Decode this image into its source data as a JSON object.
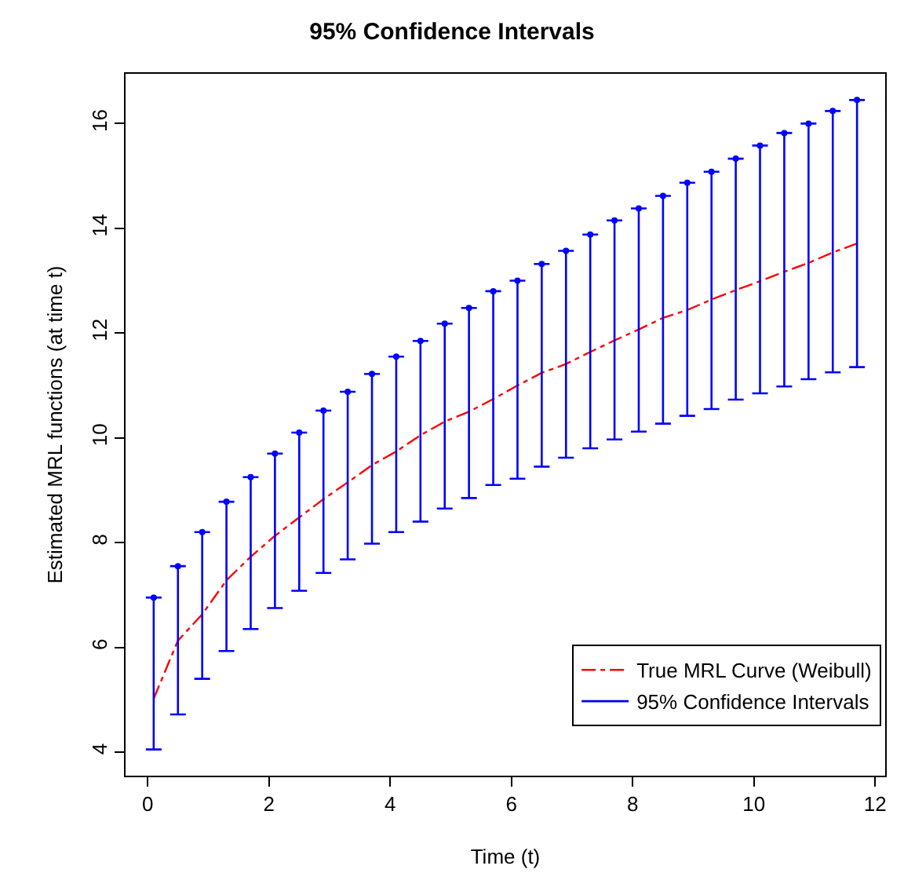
{
  "chart_data": {
    "type": "line",
    "title": "95% Confidence Intervals",
    "xlabel": "Time (t)",
    "ylabel": "Estimated MRL functions (at time t)",
    "xlim": [
      -0.364,
      12.164
    ],
    "xticks": [
      0,
      2,
      4,
      6,
      8,
      10,
      12
    ],
    "ylim": [
      3.55,
      16.95
    ],
    "yticks": [
      4,
      6,
      8,
      10,
      12,
      14,
      16
    ],
    "grid": false,
    "legend": "bottom right",
    "series": [
      {
        "name": "True MRL Curve (Weibull)",
        "color": "#ff0000",
        "line_style": "dashdot",
        "marker": "none",
        "x": [
          0.1,
          0.5,
          0.9,
          1.3,
          1.7,
          2.1,
          2.5,
          2.9,
          3.3,
          3.7,
          4.1,
          4.5,
          4.9,
          5.3,
          5.7,
          6.1,
          6.5,
          6.9,
          7.3,
          7.7,
          8.1,
          8.5,
          8.9,
          9.3,
          9.7,
          10.1,
          10.5,
          10.9,
          11.3,
          11.7
        ],
        "values": [
          5.02,
          6.13,
          6.63,
          7.28,
          7.73,
          8.13,
          8.48,
          8.83,
          9.15,
          9.48,
          9.74,
          10.05,
          10.31,
          10.5,
          10.74,
          11.0,
          11.24,
          11.41,
          11.64,
          11.86,
          12.07,
          12.29,
          12.44,
          12.64,
          12.82,
          12.99,
          13.17,
          13.34,
          13.54,
          13.71
        ]
      },
      {
        "name": "95% Confidence Intervals",
        "type": "scatter",
        "marker": "circle",
        "color": "#0000ff",
        "x": [
          0.1,
          0.5,
          0.9,
          1.3,
          1.7,
          2.1,
          2.5,
          2.9,
          3.3,
          3.7,
          4.1,
          4.5,
          4.9,
          5.3,
          5.7,
          6.1,
          6.5,
          6.9,
          7.3,
          7.7,
          8.1,
          8.5,
          8.9,
          9.3,
          9.7,
          10.1,
          10.5,
          10.9,
          11.3,
          11.7
        ],
        "values": [
          6.95,
          7.55,
          8.2,
          8.78,
          9.25,
          9.7,
          10.1,
          10.52,
          10.88,
          11.22,
          11.55,
          11.85,
          12.18,
          12.48,
          12.8,
          13.0,
          13.32,
          13.57,
          13.88,
          14.15,
          14.38,
          14.62,
          14.87,
          15.08,
          15.33,
          15.58,
          15.82,
          16.0,
          16.24,
          16.45
        ],
        "errors": [
          [
            4.05,
            6.95
          ],
          [
            4.72,
            7.55
          ],
          [
            5.4,
            8.2
          ],
          [
            5.93,
            8.78
          ],
          [
            6.35,
            9.25
          ],
          [
            6.75,
            9.7
          ],
          [
            7.08,
            10.1
          ],
          [
            7.42,
            10.52
          ],
          [
            7.68,
            10.88
          ],
          [
            7.98,
            11.22
          ],
          [
            8.2,
            11.55
          ],
          [
            8.4,
            11.85
          ],
          [
            8.65,
            12.18
          ],
          [
            8.85,
            12.48
          ],
          [
            9.1,
            12.8
          ],
          [
            9.22,
            13.0
          ],
          [
            9.45,
            13.32
          ],
          [
            9.62,
            13.57
          ],
          [
            9.8,
            13.88
          ],
          [
            9.97,
            14.15
          ],
          [
            10.12,
            14.38
          ],
          [
            10.27,
            14.62
          ],
          [
            10.42,
            14.87
          ],
          [
            10.55,
            15.08
          ],
          [
            10.73,
            15.33
          ],
          [
            10.85,
            15.58
          ],
          [
            10.98,
            15.82
          ],
          [
            11.12,
            16.0
          ],
          [
            11.25,
            16.24
          ],
          [
            11.35,
            16.45
          ]
        ]
      }
    ]
  }
}
